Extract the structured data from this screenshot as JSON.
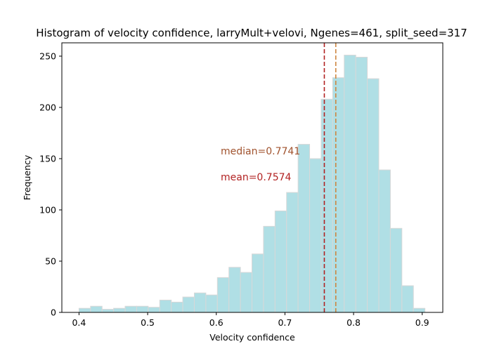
{
  "chart_data": {
    "type": "bar",
    "title": "Histogram of velocity confidence, larryMult+velovi, Ngenes=461, split_seed=317",
    "xlabel": "Velocity confidence",
    "ylabel": "Frequency",
    "xlim": [
      0.375,
      0.93
    ],
    "ylim": [
      0,
      263
    ],
    "xticks": [
      0.4,
      0.5,
      0.6,
      0.7,
      0.8,
      0.9
    ],
    "xtick_labels": [
      "0.4",
      "0.5",
      "0.6",
      "0.7",
      "0.8",
      "0.9"
    ],
    "yticks": [
      0,
      50,
      100,
      150,
      200,
      250
    ],
    "ytick_labels": [
      "0",
      "50",
      "100",
      "150",
      "200",
      "250"
    ],
    "grid": false,
    "bar_color": "#b0dfe5",
    "bar_edge_color": "#d8d8d8",
    "bin_start": 0.4,
    "bin_width": 0.0168,
    "values": [
      4,
      6,
      3,
      4,
      6,
      6,
      5,
      12,
      10,
      15,
      19,
      17,
      34,
      44,
      39,
      57,
      84,
      99,
      117,
      164,
      150,
      208,
      229,
      251,
      249,
      228,
      139,
      82,
      26,
      4
    ],
    "annotations": [
      {
        "label": "median=0.7741",
        "x": 0.7741,
        "color": "#a0522d",
        "line_color": "#cd853f"
      },
      {
        "label": "mean=0.7574",
        "x": 0.7574,
        "color": "#b22222",
        "line_color": "#b22222"
      }
    ]
  }
}
